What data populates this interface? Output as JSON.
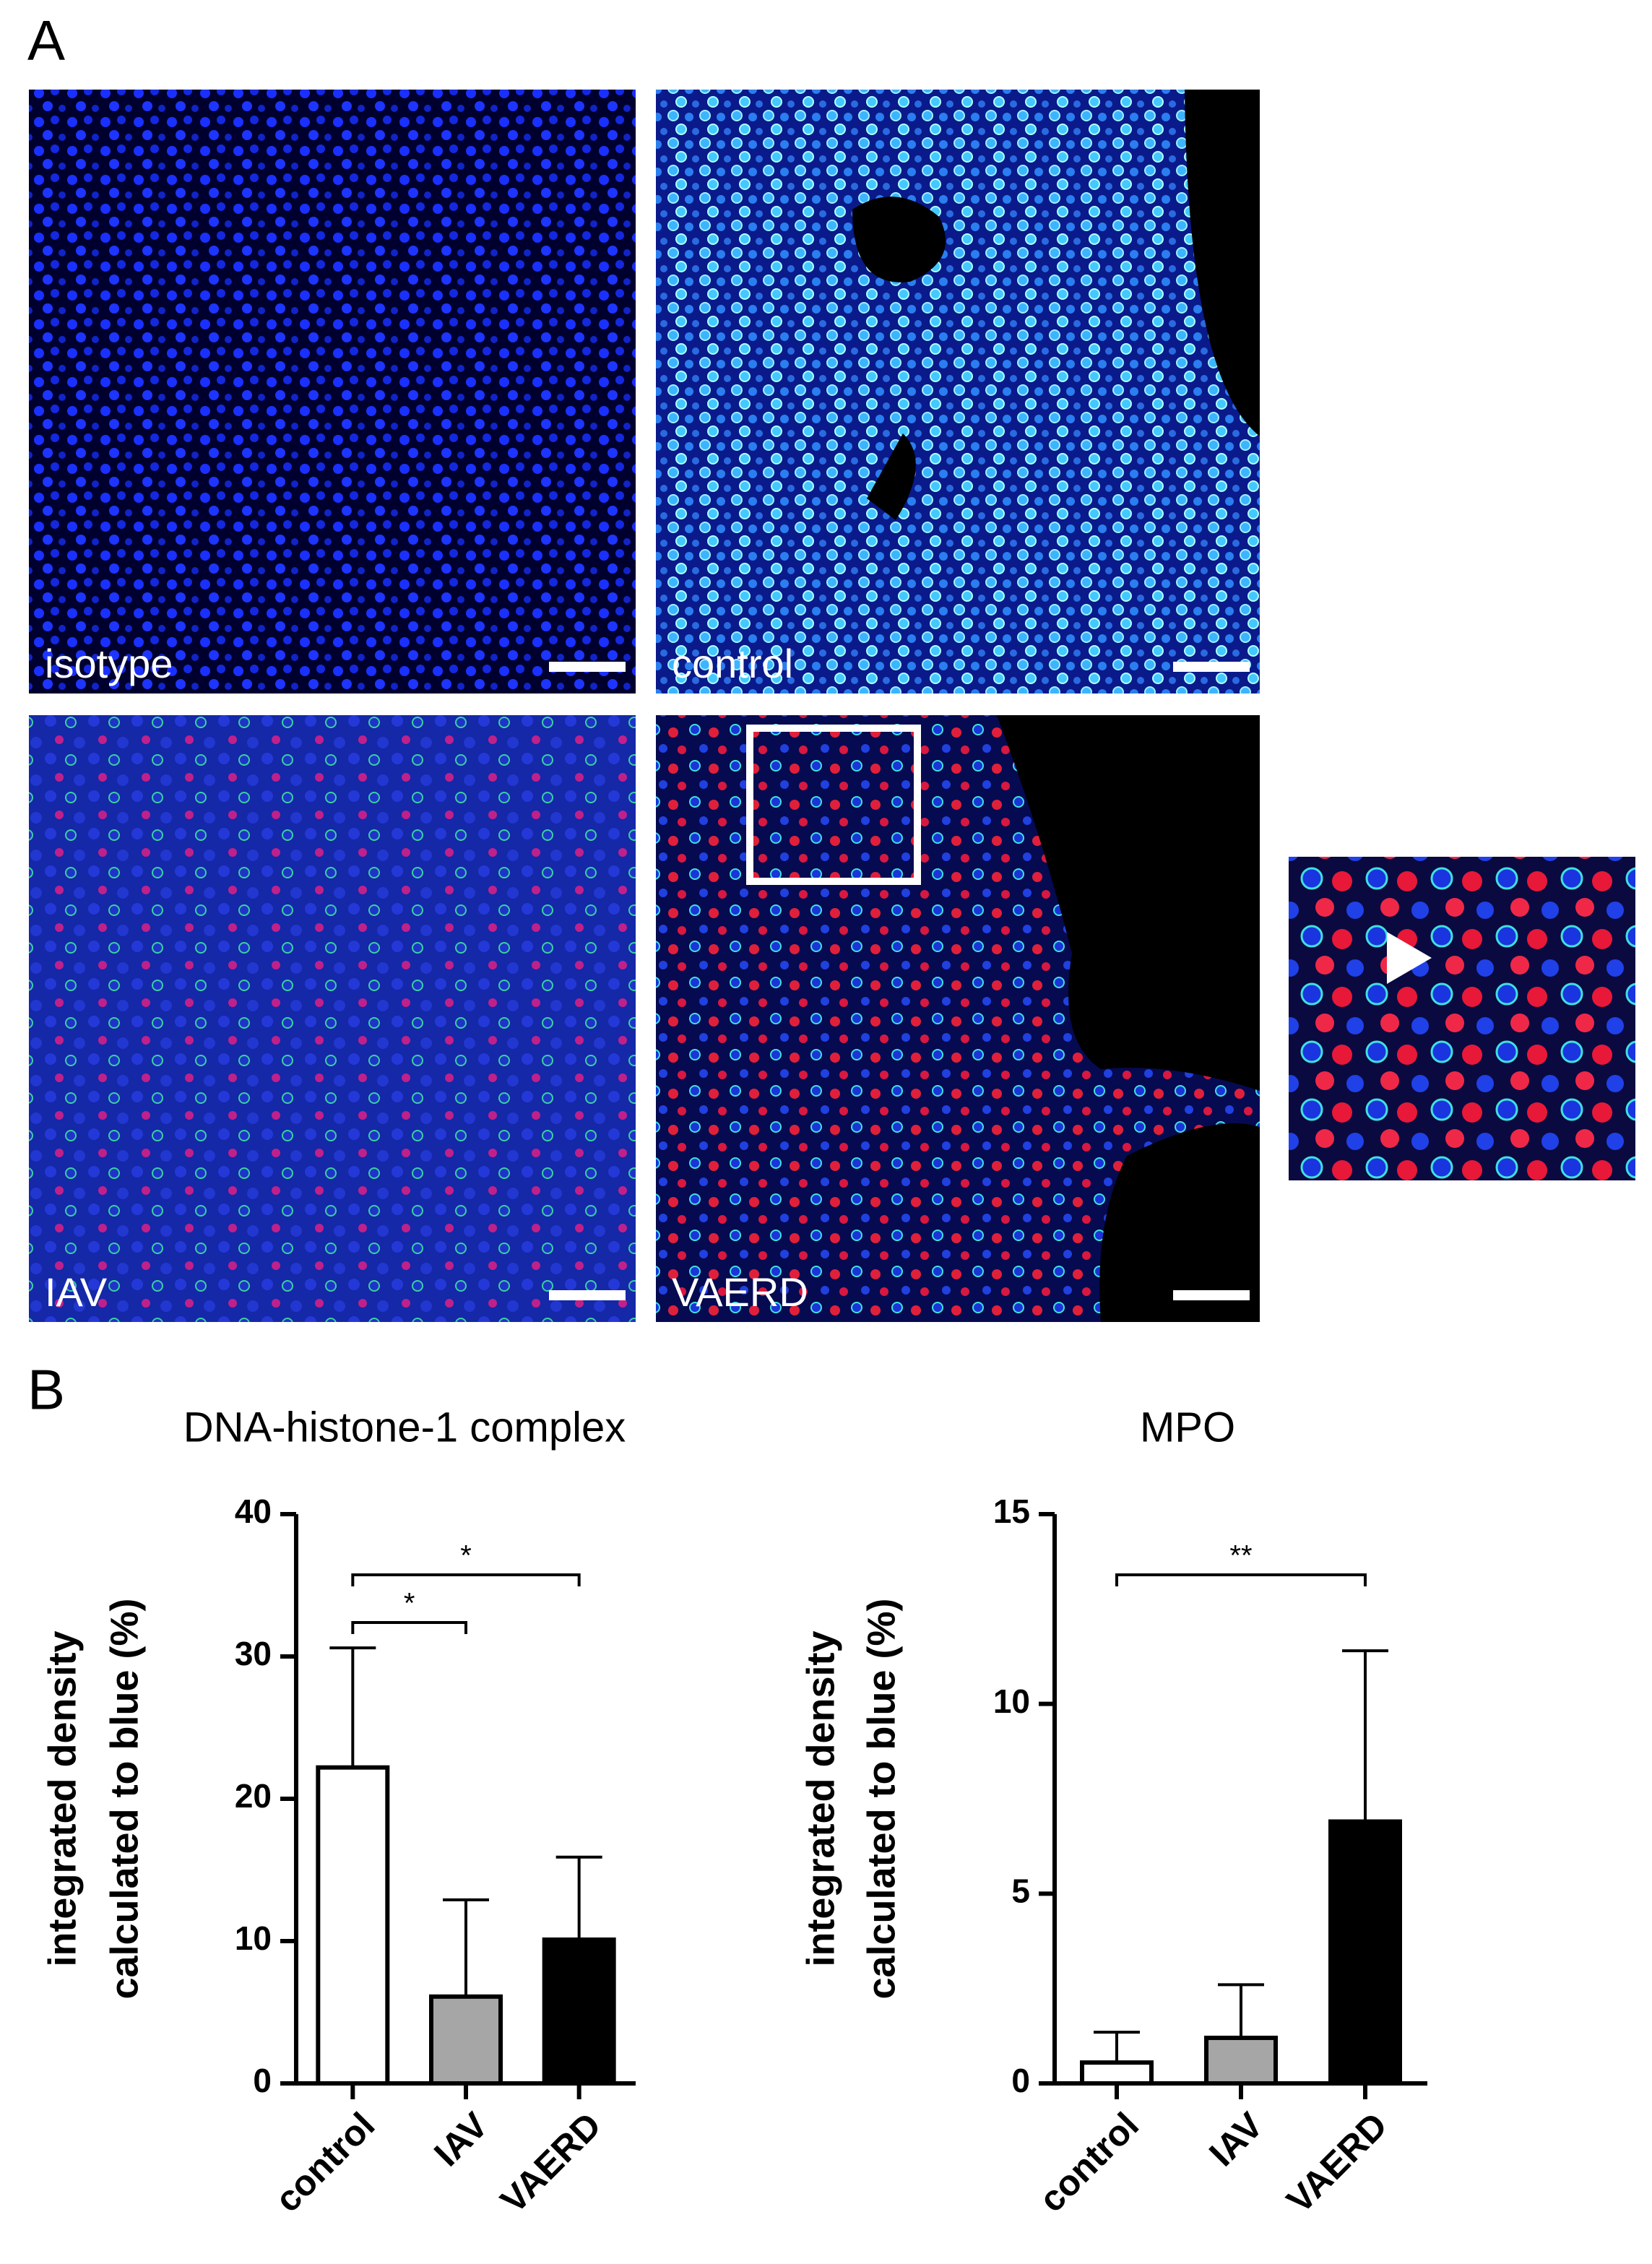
{
  "panel_labels": [
    "A",
    "B"
  ],
  "images": [
    {
      "label": "isotype"
    },
    {
      "label": "control"
    },
    {
      "label": "IAV"
    },
    {
      "label": "VAERD"
    }
  ],
  "chart_data": [
    {
      "type": "bar",
      "title": "DNA-histone-1 complex",
      "y_label": [
        "integrated density",
        "calculated to blue (%)"
      ],
      "categories": [
        "control",
        "IAV",
        "VAERD"
      ],
      "values": [
        22.2,
        6.1,
        10.1
      ],
      "errors": [
        8.4,
        6.8,
        5.8
      ],
      "colors": [
        "#ffffff",
        "#a6a6a6",
        "#000000"
      ],
      "ylim": [
        0,
        40
      ],
      "yticks": [
        0,
        10,
        20,
        30,
        40
      ],
      "significance": [
        {
          "text": "*",
          "groups": [
            "control",
            "VAERD"
          ]
        },
        {
          "text": "*",
          "groups": [
            "control",
            "IAV"
          ]
        }
      ]
    },
    {
      "type": "bar",
      "title": "MPO",
      "y_label": [
        "integrated density",
        "calculated to blue (%)"
      ],
      "categories": [
        "control",
        "IAV",
        "VAERD"
      ],
      "values": [
        0.55,
        1.2,
        6.9
      ],
      "errors": [
        0.8,
        1.4,
        4.5
      ],
      "colors": [
        "#ffffff",
        "#a6a6a6",
        "#000000"
      ],
      "ylim": [
        0,
        15
      ],
      "yticks": [
        0,
        5,
        10,
        15
      ],
      "significance": [
        {
          "text": "**",
          "groups": [
            "control",
            "VAERD"
          ]
        }
      ]
    }
  ]
}
